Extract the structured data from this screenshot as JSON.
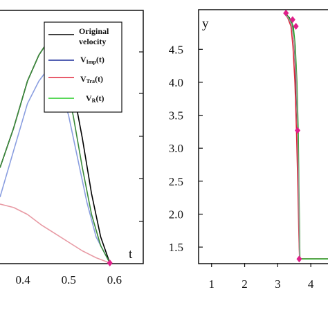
{
  "chart_data": [
    {
      "type": "line",
      "xlabel": "t",
      "ylabel": "",
      "xlim": [
        0.35,
        0.66
      ],
      "ylim": [
        0,
        1.45
      ],
      "x_ticks": [
        "0.4",
        "0.5",
        "0.6"
      ],
      "x_tick_values": [
        0.4,
        0.5,
        0.6
      ],
      "legend_position": "top-right",
      "legend": [
        {
          "label": "Original",
          "label2": "velocity",
          "color": "#000000"
        },
        {
          "label": "V",
          "sub": "Imp",
          "suffix": "(t)",
          "color": "#1a2d9a"
        },
        {
          "label": "V",
          "sub": "Tra",
          "suffix": "(t)",
          "color": "#e0263c"
        },
        {
          "label": "V",
          "sub": "R",
          "suffix": "(t)",
          "color": "#22cc22"
        }
      ],
      "series": [
        {
          "name": "Original velocity",
          "color": "#000000",
          "x": [
            0.35,
            0.38,
            0.41,
            0.435,
            0.455,
            0.47,
            0.49,
            0.51,
            0.53,
            0.55,
            0.57,
            0.59
          ],
          "y": [
            0.55,
            0.78,
            1.05,
            1.2,
            1.28,
            1.28,
            1.2,
            1.0,
            0.72,
            0.4,
            0.15,
            0.0
          ]
        },
        {
          "name": "VImp(t)",
          "color": "#8a9ee0",
          "x": [
            0.35,
            0.38,
            0.41,
            0.435,
            0.455,
            0.475,
            0.5,
            0.52,
            0.54,
            0.56,
            0.59
          ],
          "y": [
            0.38,
            0.65,
            0.92,
            1.05,
            1.12,
            1.08,
            0.85,
            0.6,
            0.35,
            0.15,
            0.0
          ]
        },
        {
          "name": "VTra(t)",
          "color": "#e89aa4",
          "x": [
            0.35,
            0.38,
            0.41,
            0.44,
            0.47,
            0.5,
            0.53,
            0.56,
            0.59
          ],
          "y": [
            0.34,
            0.32,
            0.28,
            0.22,
            0.17,
            0.12,
            0.07,
            0.03,
            0.0
          ]
        },
        {
          "name": "VR(t)",
          "color": "#3a8a3a",
          "x": [
            0.35,
            0.38,
            0.41,
            0.435,
            0.455,
            0.47,
            0.49,
            0.51,
            0.53,
            0.55,
            0.57,
            0.59
          ],
          "y": [
            0.55,
            0.78,
            1.05,
            1.2,
            1.28,
            1.24,
            1.08,
            0.85,
            0.55,
            0.28,
            0.1,
            0.0
          ]
        }
      ],
      "markers": [
        {
          "x": 0.455,
          "y": 1.28,
          "color": "#e0208a"
        },
        {
          "x": 0.59,
          "y": 0.0,
          "color": "#e0208a"
        }
      ]
    },
    {
      "type": "line",
      "xlabel": "",
      "ylabel": "y",
      "xlim": [
        0.65,
        4.75
      ],
      "ylim": [
        1.27,
        5.07
      ],
      "x_ticks": [
        "1",
        "2",
        "3",
        "4"
      ],
      "x_tick_values": [
        1,
        2,
        3,
        4
      ],
      "y_ticks": [
        "1.5",
        "2.0",
        "2.5",
        "3.0",
        "3.5",
        "4.0",
        "4.5"
      ],
      "y_tick_values": [
        1.5,
        2.0,
        2.5,
        3.0,
        3.5,
        4.0,
        4.5
      ],
      "series": [
        {
          "name": "black",
          "color": "#000000",
          "x": [
            3.22,
            3.35,
            3.45,
            3.5,
            3.55,
            3.6,
            3.63,
            3.65,
            3.66,
            3.7,
            4.0,
            4.75
          ],
          "y": [
            5.05,
            4.98,
            4.87,
            4.6,
            4.1,
            3.3,
            2.5,
            1.8,
            1.32,
            1.32,
            1.32,
            1.32
          ]
        },
        {
          "name": "red",
          "color": "#e0263c",
          "x": [
            3.2,
            3.3,
            3.4,
            3.46,
            3.52,
            3.57,
            3.61,
            3.64,
            3.66,
            3.7,
            4.0,
            4.75
          ],
          "y": [
            5.05,
            4.98,
            4.85,
            4.55,
            4.0,
            3.2,
            2.4,
            1.7,
            1.32,
            1.32,
            1.32,
            1.32
          ]
        },
        {
          "name": "green",
          "color": "#22aa22",
          "x": [
            3.24,
            3.36,
            3.47,
            3.53,
            3.58,
            3.62,
            3.64,
            3.66,
            3.67,
            3.72,
            4.0,
            4.75
          ],
          "y": [
            5.05,
            4.96,
            4.85,
            4.55,
            4.0,
            3.25,
            2.45,
            1.75,
            1.32,
            1.32,
            1.32,
            1.32
          ]
        },
        {
          "name": "gray",
          "color": "#999999",
          "x": [
            3.18,
            3.3,
            3.42,
            3.5,
            3.56,
            3.6,
            3.63,
            3.65,
            3.66
          ],
          "y": [
            5.05,
            4.99,
            4.88,
            4.62,
            4.1,
            3.3,
            2.5,
            1.8,
            1.32
          ]
        }
      ],
      "markers": [
        {
          "x": 3.25,
          "y": 5.05,
          "color": "#e0208a"
        },
        {
          "x": 3.45,
          "y": 4.95,
          "color": "#e0208a"
        },
        {
          "x": 3.55,
          "y": 4.85,
          "color": "#e0208a"
        },
        {
          "x": 3.6,
          "y": 3.27,
          "color": "#e0208a"
        },
        {
          "x": 3.65,
          "y": 1.32,
          "color": "#e0208a"
        }
      ]
    }
  ]
}
